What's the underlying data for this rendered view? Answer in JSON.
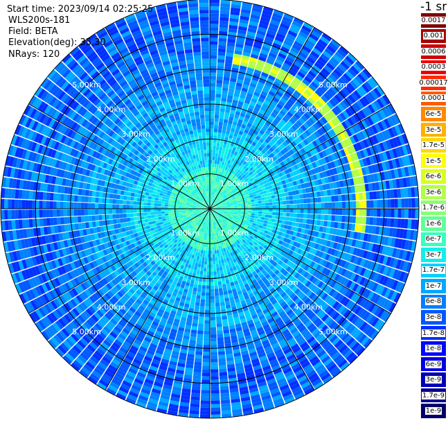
{
  "info": {
    "start_time": "Start time: 2023/09/14 02:25:25",
    "instrument": "WLS200s-181",
    "field": "Field: BETA",
    "elevation": "Elevation(deg): 35.30",
    "nrays": "NRays: 120"
  },
  "colorbar": {
    "unit": "-1 sr",
    "labels": [
      "0.0017",
      "0.001",
      "0.0006",
      "0.0003",
      "0.00017",
      "0.0001",
      "6e-5",
      "3e-5",
      "1.7e-5",
      "1e-5",
      "6e-6",
      "3e-6",
      "1.7e-6",
      "1e-6",
      "6e-7",
      "3e-7",
      "1.7e-7",
      "1e-7",
      "6e-8",
      "3e-8",
      "1.7e-8",
      "1e-8",
      "6e-9",
      "3e-9",
      "1.7e-9",
      "1e-9"
    ],
    "colors": [
      "#7f0000",
      "#a60000",
      "#cc0000",
      "#ee0000",
      "#ff2a00",
      "#ff5a00",
      "#ff8800",
      "#ffb000",
      "#ffd800",
      "#ffff00",
      "#d8ff1e",
      "#b0ff48",
      "#88ff70",
      "#60ff98",
      "#38ffc0",
      "#10f0e8",
      "#00d0ff",
      "#00a8ff",
      "#0080ff",
      "#0058ff",
      "#0030ff",
      "#0008ff",
      "#0000e0",
      "#0000b8",
      "#000090",
      "#000068"
    ]
  },
  "chart_data": {
    "type": "heatmap",
    "projection": "polar PPI",
    "field": "BETA",
    "nrays": 120,
    "range_unit": "km",
    "range_rings_km": [
      1,
      2,
      3,
      4,
      5
    ],
    "ring_labels": [
      "1.00km",
      "2.00km",
      "3.00km",
      "4.00km",
      "5.00km"
    ],
    "max_range_km": 6,
    "spoke_step_deg": 30,
    "value_range": [
      "1e-9",
      "0.0017"
    ],
    "colorbar_position": "right"
  }
}
